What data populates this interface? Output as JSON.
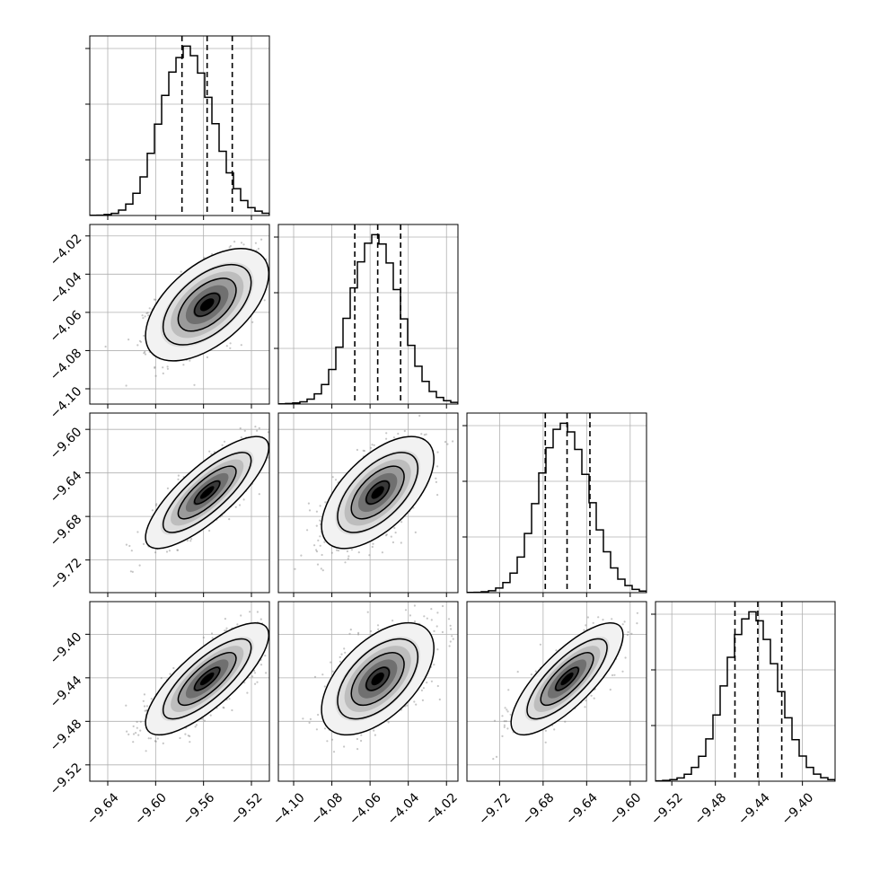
{
  "chart_data": {
    "type": "scatter",
    "title": "",
    "subtitle": "",
    "grid": true,
    "legend": "none",
    "colors": {
      "points": "#808080",
      "contours": "#000000",
      "density_dark": "#000000",
      "quantile_lines": "#000000"
    },
    "parameters": [
      {
        "index": 0,
        "label": "",
        "range": [
          -9.655,
          -9.505
        ],
        "ticks": [
          -9.64,
          -9.6,
          -9.56,
          -9.52
        ],
        "tick_labels": [
          "−9.64",
          "−9.60",
          "−9.56",
          "−9.52"
        ],
        "quantiles": [
          -9.578,
          -9.557,
          -9.536
        ],
        "median": -9.557,
        "sigma": 0.021,
        "histogram": [
          1,
          2,
          5,
          11,
          28,
          60,
          116,
          202,
          325,
          478,
          628,
          750,
          826,
          886,
          836,
          745,
          618,
          480,
          336,
          223,
          140,
          78,
          41,
          23,
          12
        ]
      },
      {
        "index": 1,
        "label": "",
        "range": [
          -4.108,
          -4.014
        ],
        "ticks": [
          -4.1,
          -4.08,
          -4.06,
          -4.04,
          -4.02
        ],
        "tick_labels": [
          "−4.10",
          "−4.08",
          "−4.06",
          "−4.04",
          "−4.02"
        ],
        "quantiles": [
          -4.068,
          -4.056,
          -4.044
        ],
        "median": -4.056,
        "sigma": 0.012,
        "histogram": [
          1,
          3,
          6,
          12,
          26,
          54,
          103,
          182,
          299,
          451,
          611,
          748,
          846,
          891,
          842,
          742,
          602,
          448,
          309,
          199,
          119,
          66,
          35,
          18,
          9
        ]
      },
      {
        "index": 2,
        "label": "",
        "range": [
          -9.75,
          -9.585
        ],
        "ticks": [
          -9.72,
          -9.68,
          -9.64,
          -9.6
        ],
        "tick_labels": [
          "−9.72",
          "−9.68",
          "−9.64",
          "−9.60"
        ],
        "quantiles": [
          -9.678,
          -9.658,
          -9.637
        ],
        "median": -9.658,
        "sigma": 0.021,
        "histogram": [
          1,
          2,
          5,
          10,
          24,
          53,
          103,
          187,
          311,
          468,
          629,
          762,
          859,
          891,
          845,
          753,
          622,
          473,
          330,
          215,
          130,
          71,
          37,
          17,
          8
        ]
      },
      {
        "index": 3,
        "label": "",
        "range": [
          -9.535,
          -9.37
        ],
        "ticks": [
          -9.52,
          -9.48,
          -9.44,
          -9.4
        ],
        "tick_labels": [
          "−9.52",
          "−9.48",
          "−9.44",
          "−9.40"
        ],
        "quantiles": [
          -9.462,
          -9.441,
          -9.419
        ],
        "median": -9.441,
        "sigma": 0.021,
        "histogram": [
          2,
          4,
          8,
          17,
          36,
          72,
          130,
          220,
          345,
          496,
          645,
          764,
          845,
          882,
          835,
          738,
          612,
          466,
          330,
          216,
          131,
          72,
          37,
          18,
          8
        ]
      }
    ],
    "correlations": {
      "1-0": 0.55,
      "2-0": 0.8,
      "2-1": 0.6,
      "3-0": 0.78,
      "3-1": 0.55,
      "3-2": 0.78
    }
  }
}
